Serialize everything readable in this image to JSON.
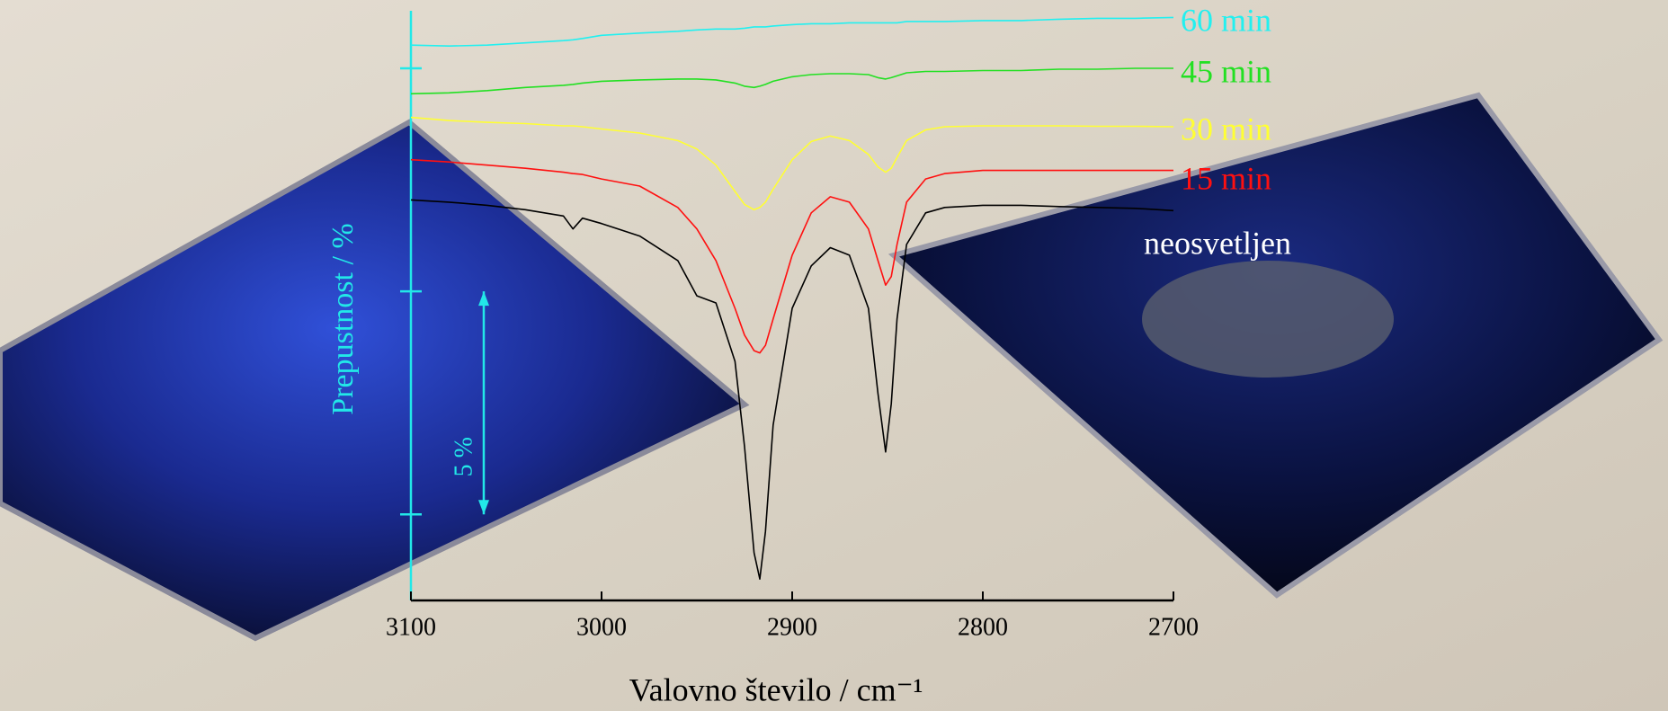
{
  "chart_data": {
    "type": "line",
    "xlabel": "Valovno število / cm⁻¹",
    "ylabel": "Prepustnost / %",
    "x": [
      3100,
      3080,
      3060,
      3040,
      3020,
      3015,
      3010,
      3000,
      2980,
      2960,
      2950,
      2940,
      2930,
      2925,
      2920,
      2917,
      2914,
      2910,
      2900,
      2890,
      2880,
      2870,
      2860,
      2855,
      2851,
      2848,
      2845,
      2840,
      2830,
      2820,
      2800,
      2780,
      2760,
      2740,
      2720,
      2700
    ],
    "xlim": [
      3100,
      2700
    ],
    "xticks": [
      3100,
      3000,
      2900,
      2800,
      2700
    ],
    "ylim": [
      -1.93,
      11.29
    ],
    "yticks": [
      0,
      5,
      10
    ],
    "scale_bar": {
      "value": 5,
      "label": "5 %"
    },
    "series": [
      {
        "name": "60 min",
        "color": "#22f0f0",
        "values": [
          10.52,
          10.5,
          10.52,
          10.57,
          10.62,
          10.64,
          10.67,
          10.74,
          10.79,
          10.83,
          10.86,
          10.88,
          10.88,
          10.9,
          10.93,
          10.93,
          10.93,
          10.95,
          10.98,
          11.0,
          11.0,
          11.02,
          11.02,
          11.02,
          11.02,
          11.02,
          11.02,
          11.05,
          11.05,
          11.05,
          11.07,
          11.07,
          11.1,
          11.12,
          11.12,
          11.14
        ]
      },
      {
        "name": "45 min",
        "color": "#22e022",
        "values": [
          9.43,
          9.45,
          9.5,
          9.57,
          9.62,
          9.64,
          9.67,
          9.71,
          9.74,
          9.76,
          9.76,
          9.74,
          9.67,
          9.6,
          9.57,
          9.6,
          9.64,
          9.71,
          9.81,
          9.86,
          9.88,
          9.88,
          9.86,
          9.79,
          9.76,
          9.79,
          9.83,
          9.9,
          9.93,
          9.93,
          9.95,
          9.95,
          9.98,
          9.98,
          10.0,
          10.0
        ]
      },
      {
        "name": "30 min",
        "color": "#ffff33",
        "values": [
          8.9,
          8.83,
          8.79,
          8.76,
          8.71,
          8.71,
          8.69,
          8.64,
          8.55,
          8.38,
          8.19,
          7.83,
          7.24,
          6.95,
          6.83,
          6.88,
          7.0,
          7.29,
          7.95,
          8.36,
          8.48,
          8.38,
          8.07,
          7.79,
          7.67,
          7.76,
          8.0,
          8.38,
          8.62,
          8.69,
          8.71,
          8.71,
          8.71,
          8.7,
          8.7,
          8.69
        ]
      },
      {
        "name": "15 min",
        "color": "#ff1010",
        "values": [
          7.95,
          7.9,
          7.83,
          7.76,
          7.67,
          7.64,
          7.62,
          7.52,
          7.36,
          6.88,
          6.4,
          5.69,
          4.62,
          4.02,
          3.67,
          3.62,
          3.79,
          4.38,
          5.81,
          6.76,
          7.12,
          7.0,
          6.4,
          5.69,
          5.14,
          5.33,
          6.05,
          7.0,
          7.52,
          7.64,
          7.71,
          7.71,
          7.71,
          7.71,
          7.71,
          7.71
        ]
      },
      {
        "name": "neosvetljen",
        "color": "#000000",
        "values": [
          7.05,
          7.0,
          6.93,
          6.83,
          6.69,
          6.4,
          6.64,
          6.52,
          6.24,
          5.69,
          4.9,
          4.74,
          3.43,
          1.52,
          -0.86,
          -1.45,
          -0.38,
          2.0,
          4.62,
          5.57,
          5.98,
          5.81,
          4.62,
          2.71,
          1.4,
          2.48,
          4.38,
          6.05,
          6.76,
          6.88,
          6.93,
          6.93,
          6.9,
          6.88,
          6.86,
          6.81
        ]
      }
    ]
  }
}
